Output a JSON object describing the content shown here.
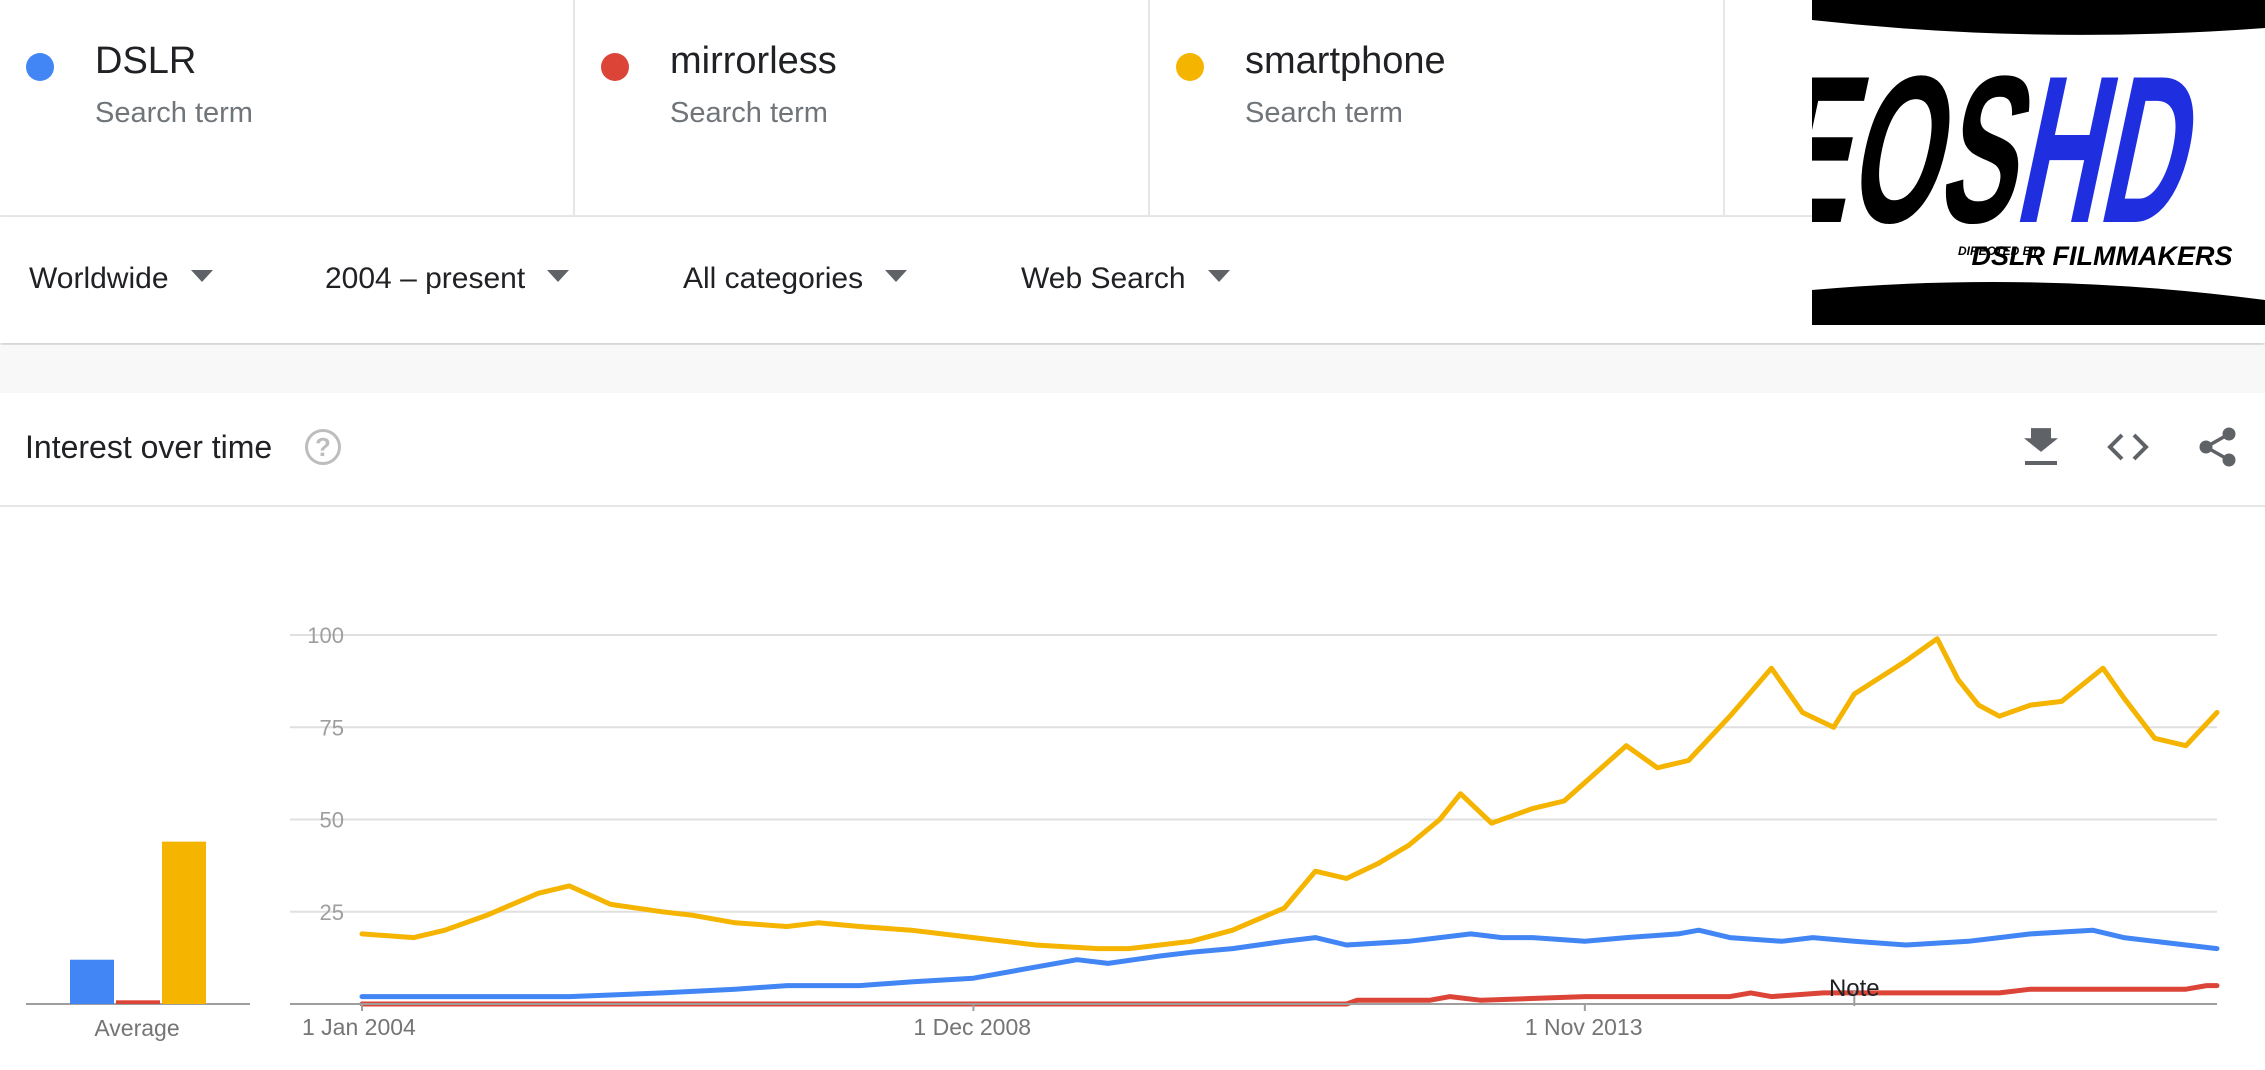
{
  "terms": [
    {
      "name": "DSLR",
      "subtitle": "Search term",
      "color": "#4285F4"
    },
    {
      "name": "mirrorless",
      "subtitle": "Search term",
      "color": "#DB4437"
    },
    {
      "name": "smartphone",
      "subtitle": "Search term",
      "color": "#F4B400"
    }
  ],
  "filters": [
    {
      "label": "Worldwide"
    },
    {
      "label": "2004 – present"
    },
    {
      "label": "All categories"
    },
    {
      "label": "Web Search"
    }
  ],
  "panel": {
    "title": "Interest over time",
    "help_glyph": "?",
    "icons": [
      "download-icon",
      "embed-code-icon",
      "share-icon"
    ]
  },
  "logo": {
    "text_primary": "EOS",
    "text_accent": "HD",
    "tagline_small": "DIRECTED BY",
    "tagline": "DSLR FILMMAKERS",
    "accent_color": "#1f2fe0"
  },
  "chart_data": {
    "type": "line",
    "title": "",
    "average_label": "Average",
    "averages": [
      {
        "name": "DSLR",
        "value": 12
      },
      {
        "name": "mirrorless",
        "value": 1
      },
      {
        "name": "smartphone",
        "value": 44
      }
    ],
    "x_start": "2004-01",
    "x_end": "2018-12",
    "x_tick_labels": [
      "1 Jan 2004",
      "1 Dec 2008",
      "1 Nov 2013"
    ],
    "x_tick_dates": [
      "2004-01",
      "2008-12",
      "2013-11"
    ],
    "ylim": [
      0,
      100
    ],
    "y_ticks": [
      25,
      50,
      75,
      100
    ],
    "grid": true,
    "annotation": {
      "label": "Note",
      "date": "2016-01"
    },
    "series": [
      {
        "name": "DSLR",
        "color": "#4285F4",
        "points": [
          [
            "2004-01",
            2
          ],
          [
            "2004-06",
            2
          ],
          [
            "2005-01",
            2
          ],
          [
            "2005-09",
            2
          ],
          [
            "2006-06",
            3
          ],
          [
            "2007-01",
            4
          ],
          [
            "2007-06",
            5
          ],
          [
            "2008-01",
            5
          ],
          [
            "2008-06",
            6
          ],
          [
            "2008-12",
            7
          ],
          [
            "2009-06",
            10
          ],
          [
            "2009-10",
            12
          ],
          [
            "2010-01",
            11
          ],
          [
            "2010-06",
            13
          ],
          [
            "2010-09",
            14
          ],
          [
            "2011-01",
            15
          ],
          [
            "2011-06",
            17
          ],
          [
            "2011-09",
            18
          ],
          [
            "2011-12",
            16
          ],
          [
            "2012-06",
            17
          ],
          [
            "2012-09",
            18
          ],
          [
            "2012-12",
            19
          ],
          [
            "2013-03",
            18
          ],
          [
            "2013-06",
            18
          ],
          [
            "2013-11",
            17
          ],
          [
            "2014-03",
            18
          ],
          [
            "2014-08",
            19
          ],
          [
            "2014-10",
            20
          ],
          [
            "2015-01",
            18
          ],
          [
            "2015-06",
            17
          ],
          [
            "2015-09",
            18
          ],
          [
            "2016-01",
            17
          ],
          [
            "2016-06",
            16
          ],
          [
            "2016-12",
            17
          ],
          [
            "2017-03",
            18
          ],
          [
            "2017-06",
            19
          ],
          [
            "2017-12",
            20
          ],
          [
            "2018-03",
            18
          ],
          [
            "2018-06",
            17
          ],
          [
            "2018-09",
            16
          ],
          [
            "2018-12",
            15
          ]
        ]
      },
      {
        "name": "mirrorless",
        "color": "#DB4437",
        "points": [
          [
            "2004-01",
            0
          ],
          [
            "2011-12",
            0
          ],
          [
            "2012-01",
            1
          ],
          [
            "2012-08",
            1
          ],
          [
            "2012-10",
            2
          ],
          [
            "2013-01",
            1
          ],
          [
            "2013-11",
            2
          ],
          [
            "2014-06",
            2
          ],
          [
            "2015-01",
            2
          ],
          [
            "2015-03",
            3
          ],
          [
            "2015-05",
            2
          ],
          [
            "2015-10",
            3
          ],
          [
            "2016-06",
            3
          ],
          [
            "2017-03",
            3
          ],
          [
            "2017-06",
            4
          ],
          [
            "2017-12",
            4
          ],
          [
            "2018-06",
            4
          ],
          [
            "2018-09",
            4
          ],
          [
            "2018-11",
            5
          ],
          [
            "2018-12",
            5
          ]
        ]
      },
      {
        "name": "smartphone",
        "color": "#F4B400",
        "points": [
          [
            "2004-01",
            19
          ],
          [
            "2004-06",
            18
          ],
          [
            "2004-09",
            20
          ],
          [
            "2005-01",
            24
          ],
          [
            "2005-06",
            30
          ],
          [
            "2005-09",
            32
          ],
          [
            "2006-01",
            27
          ],
          [
            "2006-06",
            25
          ],
          [
            "2006-09",
            24
          ],
          [
            "2007-01",
            22
          ],
          [
            "2007-06",
            21
          ],
          [
            "2007-09",
            22
          ],
          [
            "2008-01",
            21
          ],
          [
            "2008-06",
            20
          ],
          [
            "2008-12",
            18
          ],
          [
            "2009-06",
            16
          ],
          [
            "2009-12",
            15
          ],
          [
            "2010-03",
            15
          ],
          [
            "2010-06",
            16
          ],
          [
            "2010-09",
            17
          ],
          [
            "2011-01",
            20
          ],
          [
            "2011-06",
            26
          ],
          [
            "2011-09",
            36
          ],
          [
            "2011-12",
            34
          ],
          [
            "2012-03",
            38
          ],
          [
            "2012-06",
            43
          ],
          [
            "2012-09",
            50
          ],
          [
            "2012-11",
            57
          ],
          [
            "2013-02",
            49
          ],
          [
            "2013-06",
            53
          ],
          [
            "2013-09",
            55
          ],
          [
            "2013-11",
            60
          ],
          [
            "2014-03",
            70
          ],
          [
            "2014-06",
            64
          ],
          [
            "2014-09",
            66
          ],
          [
            "2015-01",
            78
          ],
          [
            "2015-05",
            91
          ],
          [
            "2015-08",
            79
          ],
          [
            "2015-11",
            75
          ],
          [
            "2016-01",
            84
          ],
          [
            "2016-06",
            93
          ],
          [
            "2016-09",
            99
          ],
          [
            "2016-11",
            88
          ],
          [
            "2017-01",
            81
          ],
          [
            "2017-03",
            78
          ],
          [
            "2017-06",
            81
          ],
          [
            "2017-09",
            82
          ],
          [
            "2018-01",
            91
          ],
          [
            "2018-03",
            83
          ],
          [
            "2018-06",
            72
          ],
          [
            "2018-09",
            70
          ],
          [
            "2018-12",
            79
          ]
        ]
      }
    ]
  }
}
